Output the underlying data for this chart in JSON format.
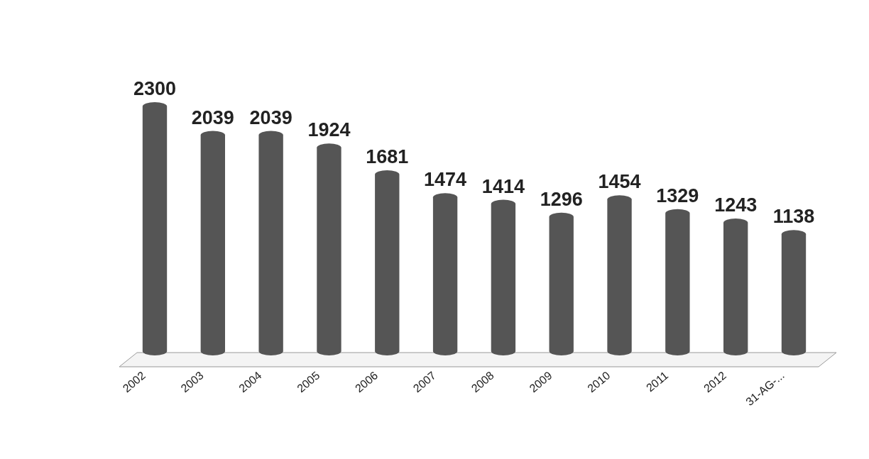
{
  "chart_data": {
    "type": "bar",
    "categories": [
      "2002",
      "2003",
      "2004",
      "2005",
      "2006",
      "2007",
      "2008",
      "2009",
      "2010",
      "2011",
      "2012",
      "31-AG-..."
    ],
    "values": [
      2300,
      2039,
      2039,
      1924,
      1681,
      1474,
      1414,
      1296,
      1454,
      1329,
      1243,
      1138
    ],
    "color": "#555555",
    "data_labels": true
  }
}
